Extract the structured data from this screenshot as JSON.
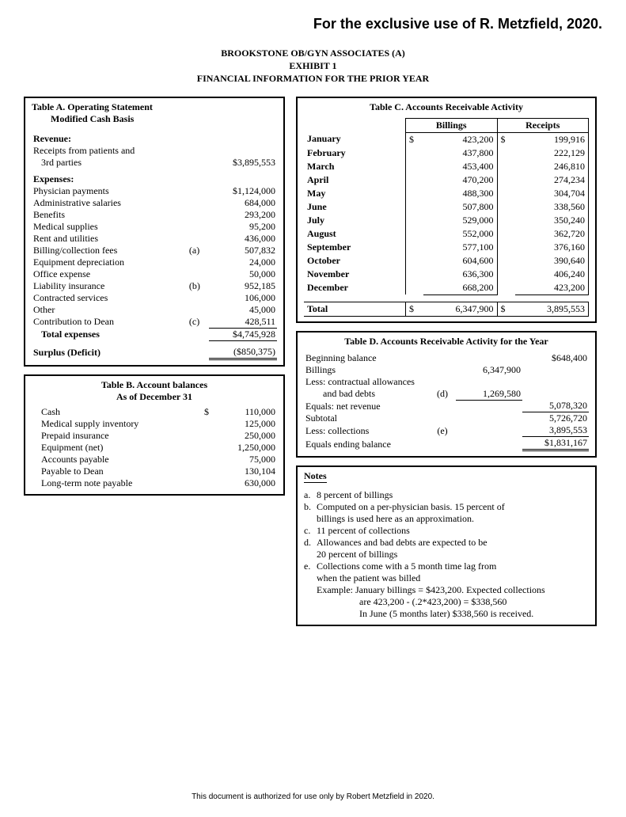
{
  "header": {
    "exclusive": "For the exclusive use of R. Metzfield, 2020."
  },
  "title": {
    "line1": "BROOKSTONE OB/GYN ASSOCIATES (A)",
    "line2": "EXHIBIT 1",
    "line3": "FINANCIAL INFORMATION FOR THE PRIOR YEAR"
  },
  "tableA": {
    "title": "Table A. Operating Statement",
    "subtitle": "Modified Cash Basis",
    "revenue_label": "Revenue:",
    "revenue_item1": "Receipts from patients and",
    "revenue_item1b": "3rd parties",
    "revenue_value": "$3,895,553",
    "expenses_label": "Expenses:",
    "rows": [
      {
        "label": "Physician payments",
        "note": "",
        "value": "$1,124,000"
      },
      {
        "label": "Administrative salaries",
        "note": "",
        "value": "684,000"
      },
      {
        "label": "Benefits",
        "note": "",
        "value": "293,200"
      },
      {
        "label": "Medical supplies",
        "note": "",
        "value": "95,200"
      },
      {
        "label": "Rent and utilities",
        "note": "",
        "value": "436,000"
      },
      {
        "label": "Billing/collection fees",
        "note": "(a)",
        "value": "507,832"
      },
      {
        "label": "Equipment depreciation",
        "note": "",
        "value": "24,000"
      },
      {
        "label": "Office expense",
        "note": "",
        "value": "50,000"
      },
      {
        "label": "Liability insurance",
        "note": "(b)",
        "value": "952,185"
      },
      {
        "label": "Contracted services",
        "note": "",
        "value": "106,000"
      },
      {
        "label": "Other",
        "note": "",
        "value": "45,000"
      },
      {
        "label": "Contribution to Dean",
        "note": "(c)",
        "value": "428,511"
      }
    ],
    "total_exp_label": "Total expenses",
    "total_exp_value": "$4,745,928",
    "surplus_label": "Surplus (Deficit)",
    "surplus_value": "($850,375)"
  },
  "tableB": {
    "title": "Table B.  Account balances",
    "subtitle": "As of December 31",
    "rows": [
      {
        "label": "Cash",
        "prefix": "$",
        "value": "110,000"
      },
      {
        "label": "Medical supply inventory",
        "prefix": "",
        "value": "125,000"
      },
      {
        "label": "Prepaid insurance",
        "prefix": "",
        "value": "250,000"
      },
      {
        "label": "Equipment (net)",
        "prefix": "",
        "value": "1,250,000"
      },
      {
        "label": "Accounts payable",
        "prefix": "",
        "value": "75,000"
      },
      {
        "label": "Payable to Dean",
        "prefix": "",
        "value": "130,104"
      },
      {
        "label": "Long-term note payable",
        "prefix": "",
        "value": "630,000"
      }
    ]
  },
  "tableC": {
    "title": "Table C. Accounts Receivable Activity",
    "col_billings": "Billings",
    "col_receipts": "Receipts",
    "rows": [
      {
        "month": "January",
        "b": "423,200",
        "r": "199,916",
        "bp": "$",
        "rp": "$"
      },
      {
        "month": "February",
        "b": "437,800",
        "r": "222,129",
        "bp": "",
        "rp": ""
      },
      {
        "month": "March",
        "b": "453,400",
        "r": "246,810",
        "bp": "",
        "rp": ""
      },
      {
        "month": "April",
        "b": "470,200",
        "r": "274,234",
        "bp": "",
        "rp": ""
      },
      {
        "month": "May",
        "b": "488,300",
        "r": "304,704",
        "bp": "",
        "rp": ""
      },
      {
        "month": "June",
        "b": "507,800",
        "r": "338,560",
        "bp": "",
        "rp": ""
      },
      {
        "month": "July",
        "b": "529,000",
        "r": "350,240",
        "bp": "",
        "rp": ""
      },
      {
        "month": "August",
        "b": "552,000",
        "r": "362,720",
        "bp": "",
        "rp": ""
      },
      {
        "month": "September",
        "b": "577,100",
        "r": "376,160",
        "bp": "",
        "rp": ""
      },
      {
        "month": "October",
        "b": "604,600",
        "r": "390,640",
        "bp": "",
        "rp": ""
      },
      {
        "month": "November",
        "b": "636,300",
        "r": "406,240",
        "bp": "",
        "rp": ""
      },
      {
        "month": "December",
        "b": "668,200",
        "r": "423,200",
        "bp": "",
        "rp": ""
      }
    ],
    "total_label": "Total",
    "total_b": "6,347,900",
    "total_r": "3,895,553",
    "total_bp": "$",
    "total_rp": "$"
  },
  "tableD": {
    "title": "Table D.  Accounts Receivable Activity for the Year",
    "rows": {
      "beg_label": "Beginning balance",
      "beg_val": "$648,400",
      "bill_label": "Billings",
      "bill_val": "6,347,900",
      "less1_label": "Less: contractual allowances",
      "less1b_label": "and bad debts",
      "less1b_note": "(d)",
      "less1b_val": "1,269,580",
      "netrev_label": "Equals: net revenue",
      "netrev_val": "5,078,320",
      "subtotal_label": "Subtotal",
      "subtotal_val": "5,726,720",
      "less2_label": "Less: collections",
      "less2_note": "(e)",
      "less2_val": "3,895,553",
      "end_label": "Equals ending balance",
      "end_val": "$1,831,167"
    }
  },
  "notes": {
    "title": "Notes",
    "a": "8 percent of billings",
    "b": "Computed on a per-physician basis.  15 percent of",
    "b2": "billings is used here as an approximation.",
    "c": "11 percent of collections",
    "d": "Allowances and bad debts are expected to be",
    "d2": "20 percent of billings",
    "e": "Collections come with a 5 month time lag from",
    "e2": "when the patient was billed",
    "e3": "Example: January billings = $423,200.  Expected collections",
    "e4": "are 423,200 - (.2*423,200) = $338,560",
    "e5": "In June (5 months later) $338,560 is received."
  },
  "footer": "This document is authorized for use only by Robert Metzfield in 2020."
}
